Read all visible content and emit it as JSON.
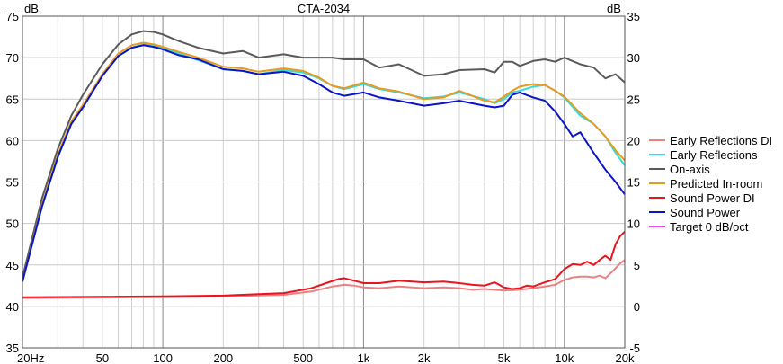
{
  "chart_data": {
    "type": "line",
    "title": "CTA-2034",
    "y_left_unit": "dB",
    "y_right_unit": "dB",
    "x_scale": "log",
    "xlim": [
      20,
      20000
    ],
    "ylim_left": [
      35,
      75
    ],
    "ylim_right": [
      -5,
      35
    ],
    "grid": true,
    "legend_position": "right",
    "x_ticks": [
      {
        "value": 20,
        "label": "20Hz"
      },
      {
        "value": 50,
        "label": "50"
      },
      {
        "value": 100,
        "label": "100"
      },
      {
        "value": 200,
        "label": "200"
      },
      {
        "value": 500,
        "label": "500"
      },
      {
        "value": 1000,
        "label": "1k"
      },
      {
        "value": 2000,
        "label": "2k"
      },
      {
        "value": 5000,
        "label": "5k"
      },
      {
        "value": 10000,
        "label": "10k"
      },
      {
        "value": 20000,
        "label": "20k"
      }
    ],
    "y_left_ticks": [
      75,
      70,
      65,
      60,
      55,
      50,
      45,
      40,
      35
    ],
    "y_right_ticks": [
      35,
      30,
      25,
      20,
      15,
      10,
      5,
      0,
      -5
    ],
    "series": [
      {
        "name": "Early Reflections DI",
        "color": "#f08080",
        "axis": "right",
        "x": [
          20,
          100,
          200,
          400,
          550,
          700,
          800,
          900,
          1000,
          1200,
          1500,
          2000,
          2500,
          3000,
          3500,
          4000,
          5000,
          6000,
          7000,
          8000,
          9000,
          10000,
          11000,
          12000,
          13000,
          14000,
          15000,
          16000,
          17000,
          18000,
          19000,
          20000
        ],
        "values": [
          1.0,
          1.1,
          1.2,
          1.4,
          1.8,
          2.4,
          2.6,
          2.5,
          2.3,
          2.2,
          2.4,
          2.2,
          2.3,
          2.2,
          2.0,
          2.1,
          1.9,
          2.0,
          2.2,
          2.4,
          2.6,
          3.2,
          3.5,
          3.6,
          3.6,
          3.5,
          3.7,
          3.4,
          4.0,
          4.6,
          5.2,
          5.6
        ]
      },
      {
        "name": "Early Reflections",
        "color": "#33dddd",
        "axis": "left",
        "x": [
          20,
          25,
          30,
          35,
          40,
          50,
          60,
          70,
          80,
          90,
          100,
          120,
          150,
          200,
          250,
          300,
          400,
          500,
          600,
          700,
          800,
          1000,
          1200,
          1500,
          2000,
          2500,
          3000,
          4000,
          4500,
          5000,
          5500,
          6000,
          7000,
          8000,
          9000,
          10000,
          12000,
          14000,
          16000,
          18000,
          20000
        ],
        "values": [
          43.0,
          52.0,
          58.0,
          62.0,
          64.0,
          67.8,
          70.2,
          71.2,
          71.6,
          71.4,
          71.2,
          70.5,
          69.7,
          68.6,
          68.4,
          68.0,
          68.5,
          68.2,
          67.5,
          66.6,
          66.2,
          66.8,
          66.2,
          65.8,
          65.1,
          65.3,
          65.8,
          65.0,
          64.5,
          65.0,
          65.8,
          66.0,
          66.5,
          66.7,
          66.0,
          65.2,
          63.0,
          62.0,
          60.5,
          58.5,
          57.0
        ]
      },
      {
        "name": "On-axis",
        "color": "#5a5a5a",
        "axis": "left",
        "x": [
          20,
          25,
          30,
          35,
          40,
          50,
          60,
          70,
          80,
          90,
          100,
          120,
          150,
          200,
          250,
          300,
          400,
          500,
          600,
          700,
          800,
          1000,
          1200,
          1500,
          2000,
          2500,
          3000,
          4000,
          4500,
          5000,
          5500,
          6000,
          7000,
          8000,
          9000,
          10000,
          12000,
          14000,
          16000,
          18000,
          20000
        ],
        "values": [
          43.5,
          53.0,
          59.0,
          63.0,
          65.5,
          69.2,
          71.6,
          72.8,
          73.2,
          73.1,
          72.8,
          72.0,
          71.2,
          70.5,
          70.8,
          70.0,
          70.4,
          70.0,
          70.0,
          70.0,
          69.8,
          69.8,
          68.8,
          69.2,
          67.8,
          68.0,
          68.5,
          68.6,
          68.2,
          69.5,
          69.5,
          69.0,
          69.6,
          69.8,
          69.5,
          70.0,
          69.2,
          68.8,
          67.5,
          68.0,
          67.0
        ]
      },
      {
        "name": "Predicted In-room",
        "color": "#e89a20",
        "axis": "left",
        "x": [
          20,
          25,
          30,
          35,
          40,
          50,
          60,
          70,
          80,
          90,
          100,
          120,
          150,
          200,
          250,
          300,
          400,
          500,
          600,
          700,
          800,
          1000,
          1200,
          1500,
          2000,
          2500,
          3000,
          4000,
          4500,
          5000,
          5500,
          6000,
          7000,
          8000,
          9000,
          10000,
          12000,
          14000,
          16000,
          18000,
          20000
        ],
        "values": [
          43.0,
          52.2,
          58.3,
          62.3,
          64.3,
          68.0,
          70.5,
          71.5,
          71.8,
          71.6,
          71.3,
          70.7,
          70.0,
          68.9,
          68.7,
          68.3,
          68.7,
          68.4,
          67.6,
          66.6,
          66.3,
          67.0,
          66.3,
          65.9,
          65.0,
          65.2,
          66.0,
          64.8,
          64.6,
          65.3,
          66.0,
          66.5,
          66.8,
          66.7,
          66.0,
          65.3,
          63.3,
          62.0,
          60.5,
          58.8,
          57.6
        ]
      },
      {
        "name": "Sound Power DI",
        "color": "#e8141e",
        "axis": "right",
        "x": [
          20,
          100,
          200,
          400,
          550,
          650,
          750,
          800,
          900,
          1000,
          1200,
          1500,
          2000,
          2500,
          3000,
          3500,
          4000,
          4500,
          5000,
          5500,
          6000,
          6500,
          7000,
          8000,
          9000,
          10000,
          11000,
          12000,
          13000,
          14000,
          15000,
          16000,
          17000,
          18000,
          19000,
          20000
        ],
        "values": [
          1.1,
          1.2,
          1.3,
          1.6,
          2.2,
          2.8,
          3.3,
          3.4,
          3.1,
          2.8,
          2.8,
          3.1,
          2.9,
          3.0,
          2.8,
          2.6,
          2.5,
          2.9,
          2.3,
          2.1,
          2.2,
          2.5,
          2.4,
          2.9,
          3.3,
          4.5,
          5.1,
          5.0,
          5.4,
          5.0,
          5.6,
          6.1,
          5.6,
          7.5,
          8.5,
          9.0
        ]
      },
      {
        "name": "Sound Power",
        "color": "#0a14c8",
        "axis": "left",
        "x": [
          20,
          25,
          30,
          35,
          40,
          50,
          60,
          70,
          80,
          90,
          100,
          120,
          150,
          200,
          250,
          300,
          400,
          500,
          600,
          700,
          800,
          1000,
          1200,
          1500,
          2000,
          2500,
          3000,
          4000,
          4500,
          5000,
          5500,
          6000,
          7000,
          8000,
          9000,
          10000,
          11000,
          12000,
          14000,
          16000,
          18000,
          20000
        ],
        "values": [
          43.0,
          52.0,
          58.0,
          62.0,
          64.0,
          67.8,
          70.2,
          71.2,
          71.5,
          71.3,
          71.0,
          70.3,
          69.8,
          68.6,
          68.4,
          68.0,
          68.3,
          67.8,
          66.8,
          65.8,
          65.4,
          65.8,
          65.2,
          64.8,
          64.2,
          64.5,
          64.8,
          64.2,
          64.0,
          64.2,
          65.5,
          65.8,
          65.2,
          64.8,
          63.5,
          62.0,
          60.5,
          61.0,
          58.5,
          56.5,
          55.0,
          53.5
        ]
      },
      {
        "name": "Target 0 dB/oct",
        "color": "#ee44ee",
        "axis": "left",
        "x": [],
        "values": []
      }
    ]
  }
}
